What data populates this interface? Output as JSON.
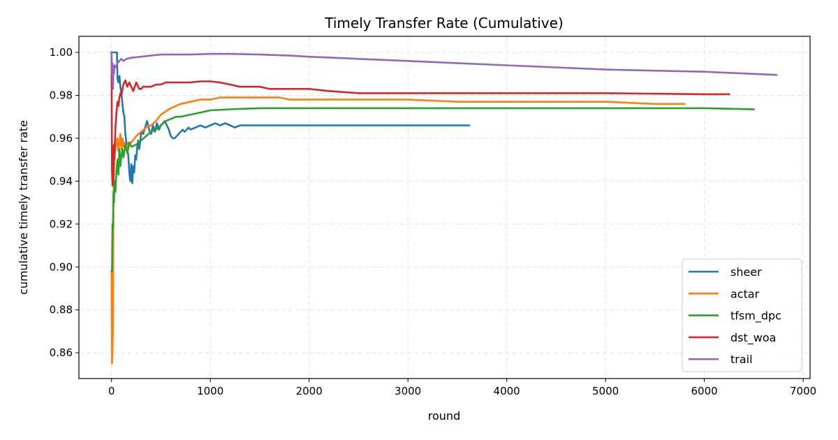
{
  "chart_data": {
    "type": "line",
    "title": "Timely Transfer Rate (Cumulative)",
    "xlabel": "round",
    "ylabel": "cumulative timely transfer rate",
    "xlim": [
      -330,
      7070
    ],
    "ylim": [
      0.848,
      1.0075
    ],
    "xticks": [
      0,
      1000,
      2000,
      3000,
      4000,
      5000,
      6000,
      7000
    ],
    "xtick_labels": [
      "0",
      "1000",
      "2000",
      "3000",
      "4000",
      "5000",
      "6000",
      "7000"
    ],
    "yticks": [
      0.86,
      0.88,
      0.9,
      0.92,
      0.94,
      0.96,
      0.98,
      1.0
    ],
    "ytick_labels": [
      "0.86",
      "0.88",
      "0.90",
      "0.92",
      "0.94",
      "0.96",
      "0.98",
      "1.00"
    ],
    "grid": true,
    "legend_position": "lower-right",
    "series": [
      {
        "name": "sheer",
        "color": "#1f77b4",
        "x": [
          0,
          5,
          10,
          20,
          30,
          40,
          50,
          55,
          60,
          70,
          80,
          90,
          100,
          110,
          120,
          130,
          140,
          150,
          160,
          170,
          180,
          190,
          200,
          210,
          220,
          230,
          240,
          250,
          260,
          270,
          280,
          290,
          300,
          320,
          340,
          360,
          380,
          400,
          420,
          440,
          460,
          480,
          500,
          520,
          540,
          560,
          580,
          600,
          620,
          640,
          660,
          680,
          700,
          720,
          740,
          760,
          780,
          800,
          850,
          900,
          950,
          1000,
          1050,
          1100,
          1150,
          1200,
          1250,
          1300,
          1350,
          1400,
          1500,
          2000,
          2500,
          3000,
          3620
        ],
        "y": [
          1.0,
          1.0,
          1.0,
          1.0,
          1.0,
          1.0,
          1.0,
          1.0,
          0.988,
          0.986,
          0.989,
          0.984,
          0.981,
          0.976,
          0.972,
          0.97,
          0.962,
          0.958,
          0.955,
          0.952,
          0.944,
          0.94,
          0.948,
          0.939,
          0.947,
          0.944,
          0.952,
          0.95,
          0.956,
          0.959,
          0.955,
          0.958,
          0.963,
          0.962,
          0.965,
          0.968,
          0.964,
          0.962,
          0.966,
          0.963,
          0.967,
          0.964,
          0.966,
          0.967,
          0.968,
          0.966,
          0.964,
          0.961,
          0.96,
          0.96,
          0.961,
          0.962,
          0.963,
          0.964,
          0.963,
          0.964,
          0.965,
          0.964,
          0.965,
          0.966,
          0.965,
          0.966,
          0.967,
          0.966,
          0.967,
          0.966,
          0.965,
          0.966,
          0.966,
          0.966,
          0.966,
          0.966,
          0.966,
          0.966,
          0.966
        ]
      },
      {
        "name": "actar",
        "color": "#ff7f0e",
        "x": [
          0,
          5,
          10,
          15,
          20,
          25,
          30,
          40,
          50,
          60,
          70,
          80,
          90,
          100,
          110,
          120,
          130,
          150,
          170,
          200,
          250,
          300,
          350,
          400,
          450,
          500,
          600,
          700,
          800,
          900,
          1000,
          1100,
          1200,
          1500,
          1700,
          1800,
          2000,
          2500,
          3000,
          3500,
          4000,
          4500,
          5000,
          5500,
          5800
        ],
        "y": [
          0.898,
          0.855,
          0.86,
          0.872,
          0.93,
          0.945,
          0.952,
          0.955,
          0.958,
          0.96,
          0.954,
          0.958,
          0.962,
          0.955,
          0.96,
          0.956,
          0.958,
          0.955,
          0.958,
          0.958,
          0.961,
          0.963,
          0.965,
          0.966,
          0.968,
          0.971,
          0.974,
          0.976,
          0.977,
          0.978,
          0.978,
          0.979,
          0.979,
          0.979,
          0.979,
          0.978,
          0.978,
          0.978,
          0.978,
          0.977,
          0.977,
          0.977,
          0.977,
          0.976,
          0.976
        ]
      },
      {
        "name": "tfsm_dpc",
        "color": "#2ca02c",
        "x": [
          0,
          5,
          10,
          15,
          20,
          25,
          30,
          40,
          50,
          60,
          70,
          80,
          90,
          100,
          110,
          120,
          140,
          160,
          180,
          200,
          250,
          300,
          350,
          400,
          450,
          500,
          550,
          600,
          650,
          700,
          800,
          900,
          1000,
          1200,
          1500,
          2000,
          3000,
          4000,
          5000,
          6000,
          6500
        ],
        "y": [
          0.898,
          0.898,
          0.92,
          0.918,
          0.935,
          0.93,
          0.94,
          0.935,
          0.945,
          0.95,
          0.943,
          0.955,
          0.947,
          0.952,
          0.955,
          0.951,
          0.957,
          0.953,
          0.958,
          0.956,
          0.957,
          0.959,
          0.961,
          0.963,
          0.964,
          0.966,
          0.968,
          0.969,
          0.97,
          0.97,
          0.971,
          0.972,
          0.973,
          0.9735,
          0.974,
          0.974,
          0.974,
          0.974,
          0.974,
          0.974,
          0.9735
        ]
      },
      {
        "name": "dst_woa",
        "color": "#d62728",
        "x": [
          0,
          5,
          10,
          15,
          20,
          25,
          30,
          35,
          40,
          50,
          60,
          70,
          80,
          90,
          100,
          120,
          140,
          160,
          180,
          200,
          220,
          250,
          280,
          300,
          320,
          350,
          400,
          450,
          500,
          550,
          600,
          700,
          800,
          900,
          1000,
          1100,
          1200,
          1300,
          1400,
          1500,
          1600,
          1700,
          1800,
          1900,
          2000,
          2200,
          2500,
          3000,
          4000,
          5000,
          6000,
          6250
        ],
        "y": [
          1.0,
          0.945,
          0.938,
          0.956,
          0.94,
          0.957,
          0.95,
          0.958,
          0.965,
          0.972,
          0.977,
          0.975,
          0.979,
          0.981,
          0.98,
          0.985,
          0.987,
          0.984,
          0.986,
          0.984,
          0.982,
          0.986,
          0.983,
          0.983,
          0.984,
          0.984,
          0.984,
          0.985,
          0.985,
          0.986,
          0.986,
          0.986,
          0.986,
          0.9865,
          0.9865,
          0.986,
          0.985,
          0.984,
          0.984,
          0.984,
          0.983,
          0.983,
          0.983,
          0.983,
          0.983,
          0.982,
          0.981,
          0.981,
          0.981,
          0.981,
          0.9805,
          0.9805
        ]
      },
      {
        "name": "trail",
        "color": "#9467bd",
        "x": [
          0,
          5,
          10,
          15,
          20,
          25,
          30,
          40,
          50,
          60,
          80,
          100,
          120,
          150,
          200,
          300,
          400,
          500,
          600,
          800,
          1000,
          1200,
          1500,
          1800,
          2000,
          2500,
          3000,
          3500,
          4000,
          4500,
          5000,
          5500,
          6000,
          6500,
          6730
        ],
        "y": [
          1.0,
          0.99,
          0.995,
          0.983,
          0.993,
          0.99,
          0.994,
          0.993,
          0.994,
          0.995,
          0.996,
          0.997,
          0.996,
          0.997,
          0.9975,
          0.998,
          0.9985,
          0.999,
          0.999,
          0.999,
          0.9993,
          0.9993,
          0.999,
          0.9985,
          0.998,
          0.997,
          0.996,
          0.995,
          0.994,
          0.993,
          0.992,
          0.9915,
          0.991,
          0.99,
          0.9895
        ]
      }
    ]
  }
}
